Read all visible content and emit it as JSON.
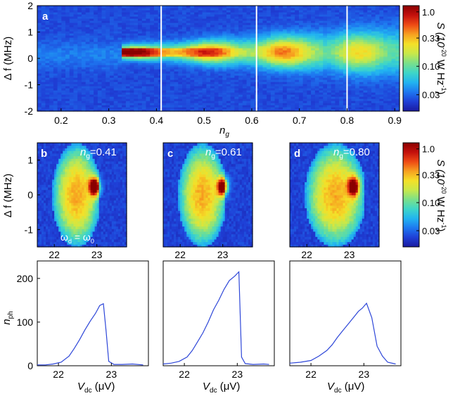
{
  "colors": {
    "colormap": [
      "#1a1aa0",
      "#1f3fd6",
      "#1e78f0",
      "#22b4f0",
      "#3ed6c8",
      "#7ae08a",
      "#c8e84a",
      "#f4e028",
      "#f7a020",
      "#ee4a14",
      "#c4100c",
      "#8a0000"
    ],
    "line": "#2d46d8",
    "marker": "#ffffff"
  },
  "chart_data": [
    {
      "id": "a",
      "type": "heatmap",
      "panel_label": "a",
      "xlabel": "n",
      "xlabel_sub": "g",
      "ylabel": "Δ f (MHz)",
      "xlim": [
        0.15,
        0.91
      ],
      "ylim": [
        -2,
        2
      ],
      "x_ticks": [
        0.2,
        0.3,
        0.4,
        0.5,
        0.6,
        0.7,
        0.8,
        0.9
      ],
      "x_tick_labels": [
        "0.2",
        "0.3",
        "0.4",
        "0.5",
        "0.6",
        "0.7",
        "0.8",
        "0.9"
      ],
      "y_ticks": [
        -2,
        -1,
        0,
        1,
        2
      ],
      "y_tick_labels": [
        "-2",
        "-1",
        "0",
        "1",
        "2"
      ],
      "markers_x": [
        0.41,
        0.61,
        0.8
      ],
      "colorbar": {
        "label": "S (10",
        "label_exp": "-20",
        "label_tail": " W Hz",
        "label_exp2": "-1",
        "label_close": ")",
        "scale": "log",
        "range": [
          0.015,
          1.3
        ],
        "ticks": [
          1.0,
          0.33,
          0.1,
          0.03
        ],
        "tick_labels": [
          "1.0",
          "0.33",
          "0.10",
          "0.03"
        ]
      }
    },
    {
      "id": "b",
      "type": "heatmap",
      "panel_label": "b",
      "annotation": "n",
      "annotation_sub": "g",
      "annotation_value": "=0.41",
      "annotation2": "ω",
      "annotation2_sub": "d",
      "annotation2_mid": " = ω",
      "annotation2_sub2": "0",
      "ylabel": "Δ f (MHz)",
      "xlim": [
        21.6,
        23.7
      ],
      "ylim": [
        -1.5,
        1.5
      ],
      "x_ticks": [
        22,
        23
      ],
      "x_tick_labels": [
        "22",
        "23"
      ],
      "y_ticks": [
        -1,
        0,
        1
      ],
      "y_tick_labels": [
        "-1",
        "0",
        "1"
      ]
    },
    {
      "id": "c",
      "type": "heatmap",
      "panel_label": "c",
      "annotation": "n",
      "annotation_sub": "g",
      "annotation_value": "=0.61",
      "xlim": [
        21.6,
        23.7
      ],
      "ylim": [
        -1.5,
        1.5
      ],
      "x_ticks": [
        22,
        23
      ],
      "x_tick_labels": [
        "22",
        "23"
      ]
    },
    {
      "id": "d",
      "type": "heatmap",
      "panel_label": "d",
      "annotation": "n",
      "annotation_sub": "g",
      "annotation_value": "=0.80",
      "xlim": [
        21.6,
        23.7
      ],
      "ylim": [
        -1.5,
        1.5
      ],
      "x_ticks": [
        22,
        23
      ],
      "x_tick_labels": [
        "22",
        "23"
      ],
      "colorbar": {
        "label": "S (10",
        "label_exp": "-20",
        "label_tail": " W Hz",
        "label_exp2": "-1",
        "label_close": ")",
        "scale": "log",
        "range": [
          0.015,
          1.3
        ],
        "ticks": [
          1.0,
          0.33,
          0.1,
          0.03
        ],
        "tick_labels": [
          "1.0",
          "0.33",
          "0.10",
          "0.03"
        ]
      }
    },
    {
      "id": "e",
      "type": "line",
      "xlabel": "V",
      "xlabel_sub": "dc",
      "xlabel_unit": " (μV)",
      "ylabel": "n",
      "ylabel_sub": "ph",
      "xlim": [
        21.6,
        23.7
      ],
      "ylim": [
        0,
        240
      ],
      "x_ticks": [
        22,
        23
      ],
      "x_tick_labels": [
        "22",
        "23"
      ],
      "y_ticks": [
        0,
        100,
        200
      ],
      "y_tick_labels": [
        "0",
        "100",
        "200"
      ],
      "x": [
        21.6,
        21.75,
        21.9,
        22.05,
        22.2,
        22.3,
        22.4,
        22.5,
        22.6,
        22.7,
        22.78,
        22.85,
        22.9,
        22.95,
        23.05,
        23.2,
        23.4,
        23.6
      ],
      "y": [
        2,
        2,
        4,
        8,
        22,
        40,
        60,
        82,
        102,
        120,
        138,
        142,
        80,
        10,
        3,
        3,
        4,
        2
      ]
    },
    {
      "id": "f",
      "type": "line",
      "xlabel": "V",
      "xlabel_sub": "dc",
      "xlabel_unit": " (μV)",
      "xlim": [
        21.6,
        23.7
      ],
      "ylim": [
        0,
        240
      ],
      "x_ticks": [
        22,
        23
      ],
      "x_tick_labels": [
        "22",
        "23"
      ],
      "x": [
        21.6,
        21.75,
        21.9,
        22.05,
        22.15,
        22.25,
        22.35,
        22.45,
        22.55,
        22.65,
        22.75,
        22.85,
        22.95,
        23.03,
        23.08,
        23.15,
        23.3,
        23.5,
        23.6
      ],
      "y": [
        4,
        6,
        10,
        20,
        35,
        55,
        75,
        100,
        128,
        150,
        175,
        195,
        205,
        215,
        20,
        5,
        3,
        4,
        3
      ]
    },
    {
      "id": "g",
      "type": "line",
      "xlabel": "V",
      "xlabel_sub": "dc",
      "xlabel_unit": " (μV)",
      "xlim": [
        21.6,
        23.7
      ],
      "ylim": [
        0,
        240
      ],
      "x_ticks": [
        22,
        23
      ],
      "x_tick_labels": [
        "22",
        "23"
      ],
      "x": [
        21.6,
        21.8,
        22.0,
        22.15,
        22.3,
        22.4,
        22.5,
        22.6,
        22.7,
        22.8,
        22.9,
        22.97,
        23.05,
        23.15,
        23.25,
        23.35,
        23.45,
        23.6
      ],
      "y": [
        6,
        8,
        12,
        22,
        35,
        48,
        65,
        80,
        95,
        110,
        125,
        132,
        143,
        110,
        45,
        22,
        8,
        4
      ]
    }
  ]
}
